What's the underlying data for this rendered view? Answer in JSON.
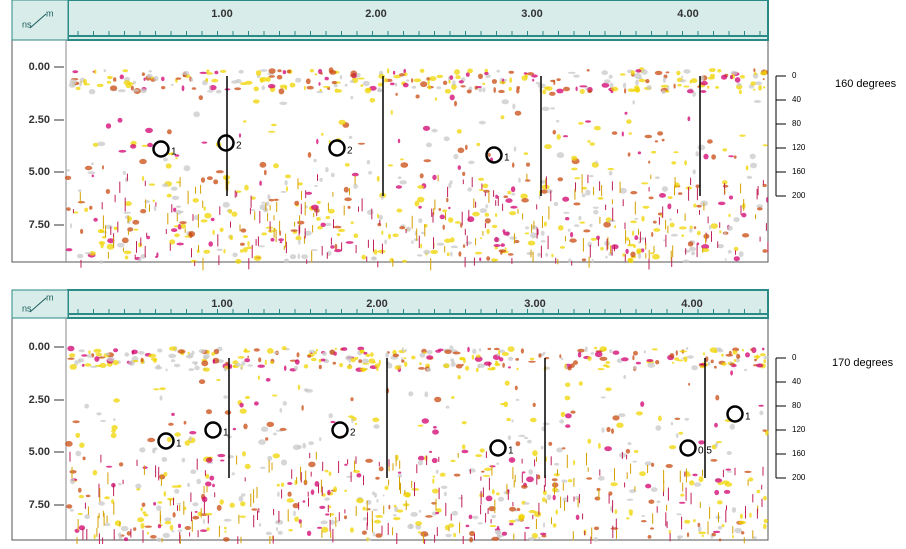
{
  "panels": [
    {
      "unit_y": "ns",
      "unit_x": "m",
      "x_labels": [
        "1.00",
        "2.00",
        "3.00",
        "4.00"
      ],
      "y_labels": [
        "0.00",
        "2.50",
        "5.00",
        "7.50"
      ],
      "scale_labels": [
        "0",
        "40",
        "80",
        "120",
        "160",
        "200"
      ],
      "caption": "160 degrees",
      "markers": [
        "1",
        "2",
        "2",
        "1"
      ]
    },
    {
      "unit_y": "ns",
      "unit_x": "m",
      "x_labels": [
        "1.00",
        "2.00",
        "3.00",
        "4.00"
      ],
      "y_labels": [
        "0.00",
        "2.50",
        "5.00",
        "7.50"
      ],
      "scale_labels": [
        "0",
        "40",
        "80",
        "120",
        "160",
        "200"
      ],
      "caption": "170 degrees",
      "markers": [
        "1",
        "1",
        "2",
        "1",
        "0.5",
        "1"
      ]
    }
  ]
}
